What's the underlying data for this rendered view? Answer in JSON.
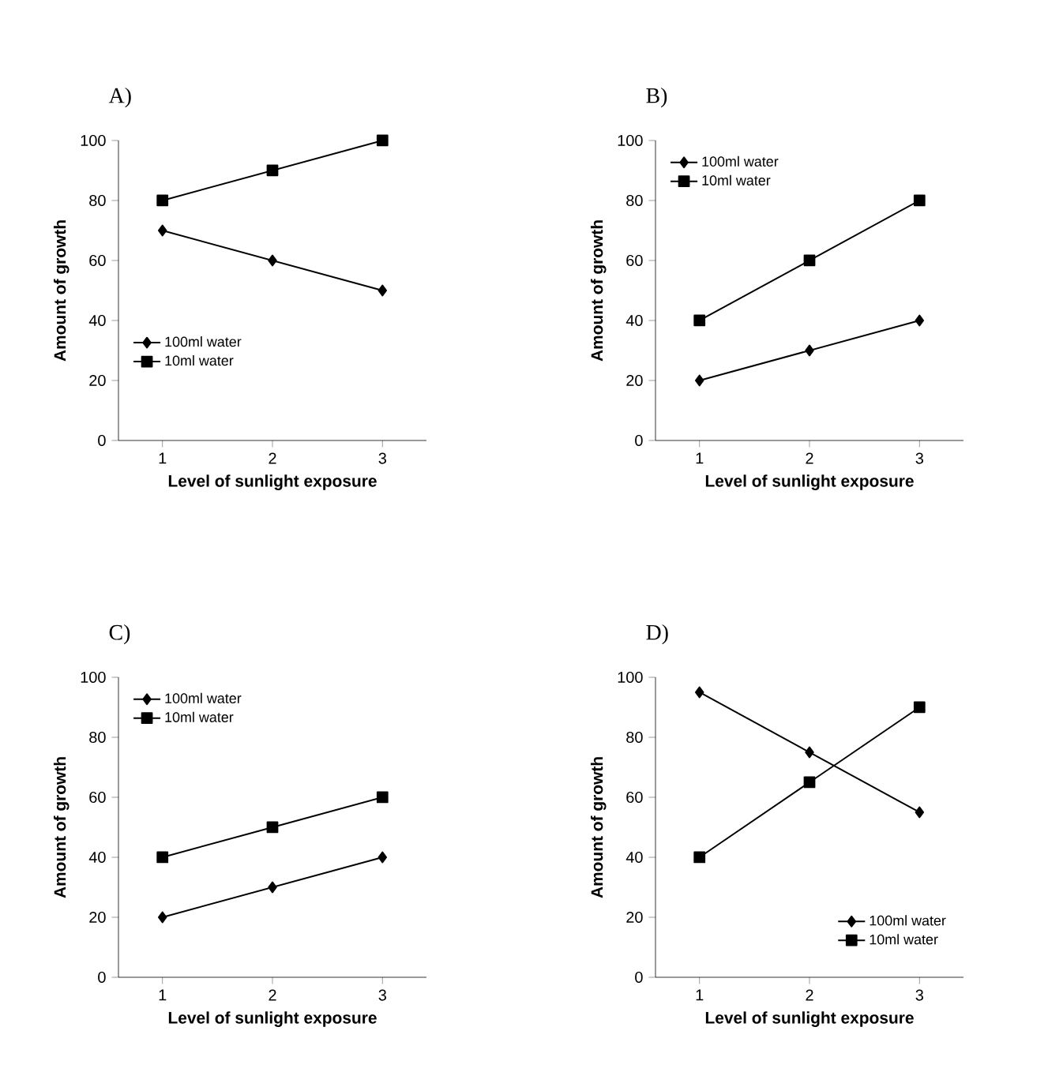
{
  "chart_data": [
    {
      "type": "line",
      "title": "A)",
      "xlabel": "Level of sunlight exposure",
      "ylabel": "Amount of growth",
      "x": [
        1,
        2,
        3
      ],
      "xlim": [
        0.6,
        3.4
      ],
      "xticks": [
        1,
        2,
        3
      ],
      "ylim": [
        0,
        100
      ],
      "yticks": [
        0,
        20,
        40,
        60,
        80,
        100
      ],
      "legend": "bottom left",
      "grid": false,
      "series": [
        {
          "name": "100ml water",
          "color": "#000000",
          "marker": "diamond",
          "values": [
            70,
            60,
            50
          ]
        },
        {
          "name": "10ml water",
          "color": "#000000",
          "marker": "square",
          "values": [
            80,
            90,
            100
          ]
        }
      ]
    },
    {
      "type": "line",
      "title": "B)",
      "xlabel": "Level of sunlight exposure",
      "ylabel": "Amount of growth",
      "x": [
        1,
        2,
        3
      ],
      "xlim": [
        0.6,
        3.4
      ],
      "xticks": [
        1,
        2,
        3
      ],
      "ylim": [
        0,
        100
      ],
      "yticks": [
        0,
        20,
        40,
        60,
        80,
        100
      ],
      "legend": "top left",
      "grid": false,
      "series": [
        {
          "name": "100ml water",
          "color": "#000000",
          "marker": "diamond",
          "values": [
            20,
            30,
            40
          ]
        },
        {
          "name": "10ml water",
          "color": "#000000",
          "marker": "square",
          "values": [
            40,
            60,
            80
          ]
        }
      ]
    },
    {
      "type": "line",
      "title": "C)",
      "xlabel": "Level of sunlight exposure",
      "ylabel": "Amount of growth",
      "x": [
        1,
        2,
        3
      ],
      "xlim": [
        0.6,
        3.4
      ],
      "xticks": [
        1,
        2,
        3
      ],
      "ylim": [
        0,
        100
      ],
      "yticks": [
        0,
        20,
        40,
        60,
        80,
        100
      ],
      "legend": "top left",
      "grid": false,
      "series": [
        {
          "name": "100ml water",
          "color": "#000000",
          "marker": "diamond",
          "values": [
            20,
            30,
            40
          ]
        },
        {
          "name": "10ml water",
          "color": "#000000",
          "marker": "square",
          "values": [
            40,
            50,
            60
          ]
        }
      ]
    },
    {
      "type": "line",
      "title": "D)",
      "xlabel": "Level of sunlight exposure",
      "ylabel": "Amount of growth",
      "x": [
        1,
        2,
        3
      ],
      "xlim": [
        0.6,
        3.4
      ],
      "xticks": [
        1,
        2,
        3
      ],
      "ylim": [
        0,
        100
      ],
      "yticks": [
        0,
        20,
        40,
        60,
        80,
        100
      ],
      "legend": "bottom right",
      "grid": false,
      "series": [
        {
          "name": "100ml water",
          "color": "#000000",
          "marker": "diamond",
          "values": [
            95,
            75,
            55
          ]
        },
        {
          "name": "10ml water",
          "color": "#000000",
          "marker": "square",
          "values": [
            40,
            65,
            90
          ]
        }
      ]
    }
  ]
}
